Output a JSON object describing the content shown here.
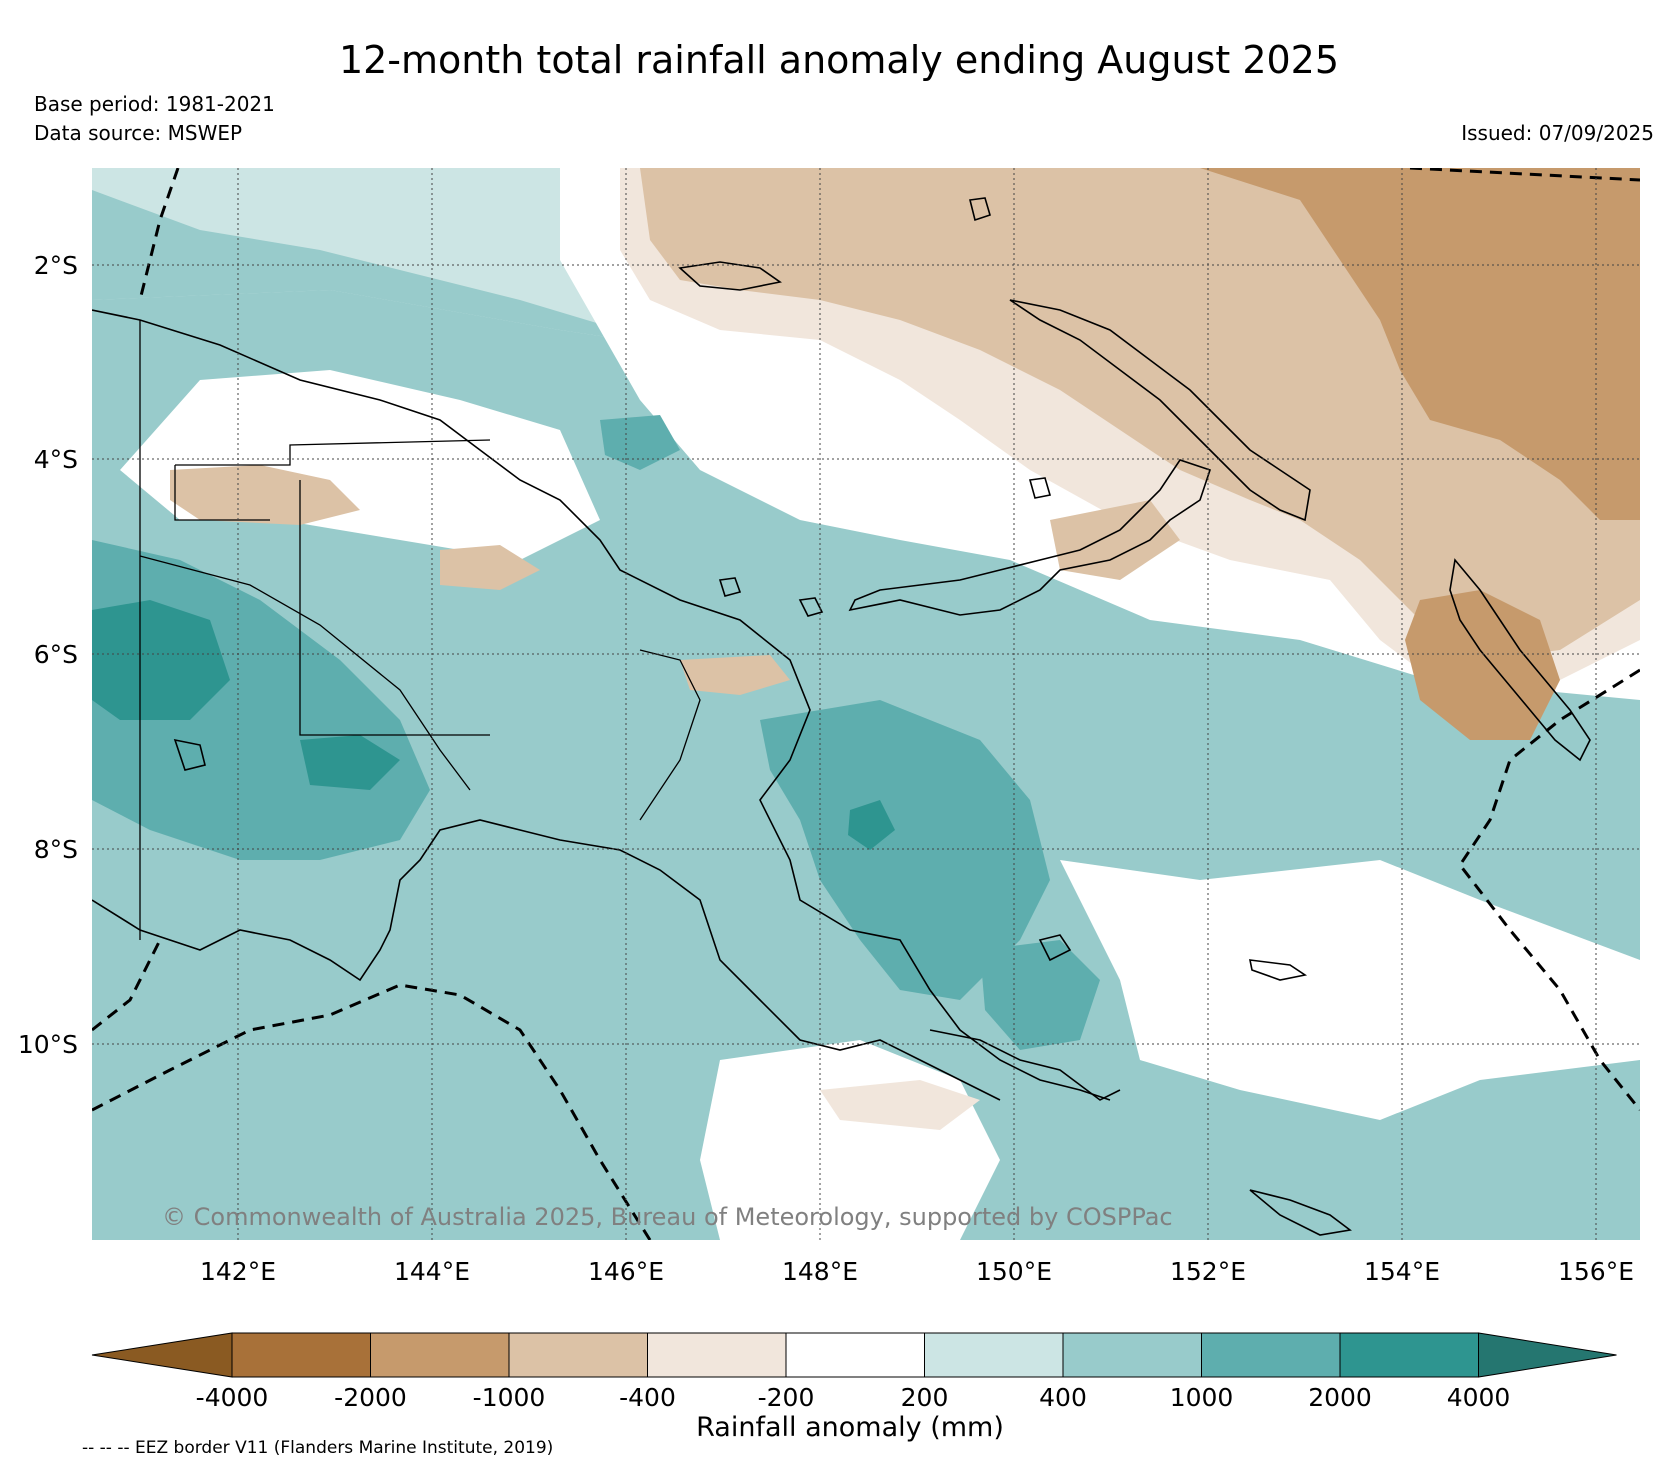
{
  "title": "12-month total rainfall anomaly ending August 2025",
  "base_period": "Base period: 1981-2021",
  "data_source": "Data source: MSWEP",
  "issued": "Issued: 07/09/2025",
  "copyright": "© Commonwealth of Australia 2025, Bureau of Meteorology, supported by COSPPac",
  "lat_labels": [
    "2°S",
    "4°S",
    "6°S",
    "8°S",
    "10°S"
  ],
  "lon_labels": [
    "142°E",
    "144°E",
    "146°E",
    "148°E",
    "150°E",
    "152°E",
    "154°E",
    "156°E"
  ],
  "colorbar": {
    "label": "Rainfall anomaly (mm)",
    "ticks": [
      "-4000",
      "-2000",
      "-1000",
      "-400",
      "-200",
      "200",
      "400",
      "1000",
      "2000",
      "4000"
    ],
    "colors": [
      "#8a5a22",
      "#a87139",
      "#c69a6c",
      "#dcc2a6",
      "#f1e6dc",
      "#ffffff",
      "#cce5e4",
      "#98cbcb",
      "#5eaeae",
      "#2e9590",
      "#257670"
    ]
  },
  "footnote": "-- -- -- EEZ border V11 (Flanders Marine Institute, 2019)"
}
